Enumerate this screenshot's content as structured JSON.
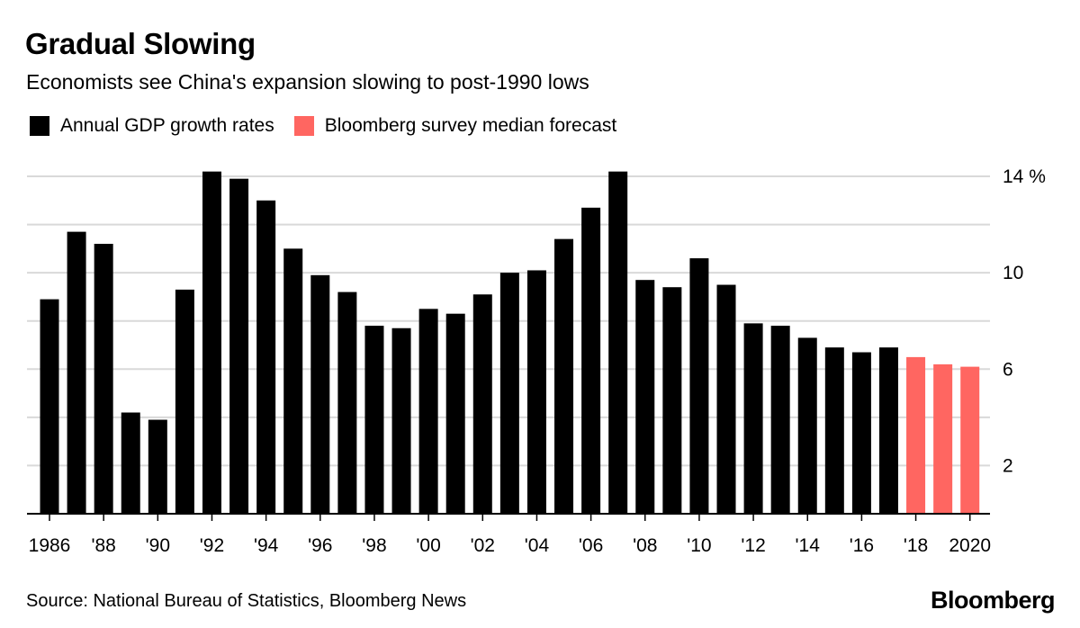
{
  "title": "Gradual Slowing",
  "subtitle": "Economists see China's expansion slowing to post-1990 lows",
  "legend": [
    {
      "label": "Annual GDP growth rates",
      "color": "#000000"
    },
    {
      "label": "Bloomberg survey median forecast",
      "color": "#ff6661"
    }
  ],
  "source": "Source: National Bureau of Statistics, Bloomberg News",
  "brand": "Bloomberg",
  "chart_data": {
    "type": "bar",
    "ylim": [
      0,
      14
    ],
    "y_ticks": [
      {
        "value": 2,
        "label": "2"
      },
      {
        "value": 4,
        "label": ""
      },
      {
        "value": 6,
        "label": "6"
      },
      {
        "value": 8,
        "label": ""
      },
      {
        "value": 10,
        "label": "10"
      },
      {
        "value": 12,
        "label": ""
      },
      {
        "value": 14,
        "label": "14 %"
      }
    ],
    "grid": true,
    "categories": [
      1986,
      1987,
      1988,
      1989,
      1990,
      1991,
      1992,
      1993,
      1994,
      1995,
      1996,
      1997,
      1998,
      1999,
      2000,
      2001,
      2002,
      2003,
      2004,
      2005,
      2006,
      2007,
      2008,
      2009,
      2010,
      2011,
      2012,
      2013,
      2014,
      2015,
      2016,
      2017,
      2018,
      2019,
      2020
    ],
    "x_tick_labels": [
      {
        "year": 1986,
        "label": "1986"
      },
      {
        "year": 1988,
        "label": "'88"
      },
      {
        "year": 1990,
        "label": "'90"
      },
      {
        "year": 1992,
        "label": "'92"
      },
      {
        "year": 1994,
        "label": "'94"
      },
      {
        "year": 1996,
        "label": "'96"
      },
      {
        "year": 1998,
        "label": "'98"
      },
      {
        "year": 2000,
        "label": "'00"
      },
      {
        "year": 2002,
        "label": "'02"
      },
      {
        "year": 2004,
        "label": "'04"
      },
      {
        "year": 2006,
        "label": "'06"
      },
      {
        "year": 2008,
        "label": "'08"
      },
      {
        "year": 2010,
        "label": "'10"
      },
      {
        "year": 2012,
        "label": "'12"
      },
      {
        "year": 2014,
        "label": "'14"
      },
      {
        "year": 2016,
        "label": "'16"
      },
      {
        "year": 2018,
        "label": "'18"
      },
      {
        "year": 2020,
        "label": "2020"
      }
    ],
    "series": [
      {
        "name": "Annual GDP growth rates",
        "color": "#000000",
        "values": [
          8.9,
          11.7,
          11.2,
          4.2,
          3.9,
          9.3,
          14.2,
          13.9,
          13.0,
          11.0,
          9.9,
          9.2,
          7.8,
          7.7,
          8.5,
          8.3,
          9.1,
          10.0,
          10.1,
          11.4,
          12.7,
          14.2,
          9.7,
          9.4,
          10.6,
          9.5,
          7.9,
          7.8,
          7.3,
          6.9,
          6.7,
          6.9,
          null,
          null,
          null
        ]
      },
      {
        "name": "Bloomberg survey median forecast",
        "color": "#ff6661",
        "values": [
          null,
          null,
          null,
          null,
          null,
          null,
          null,
          null,
          null,
          null,
          null,
          null,
          null,
          null,
          null,
          null,
          null,
          null,
          null,
          null,
          null,
          null,
          null,
          null,
          null,
          null,
          null,
          null,
          null,
          null,
          null,
          null,
          6.5,
          6.2,
          6.1
        ]
      }
    ]
  }
}
